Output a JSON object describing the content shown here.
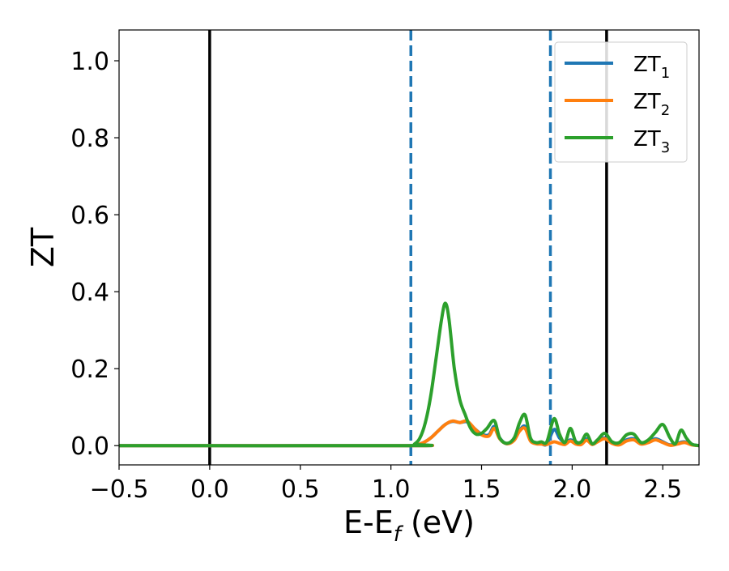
{
  "chart_data": {
    "type": "line",
    "xlabel": "E-E",
    "xlabel_sub": "f",
    "xlabel_unit": " (eV)",
    "ylabel": "ZT",
    "xlim": [
      -0.5,
      2.7
    ],
    "ylim": [
      -0.05,
      1.08
    ],
    "xticks": [
      -0.5,
      0.0,
      0.5,
      1.0,
      1.5,
      2.0,
      2.5
    ],
    "xtick_labels": [
      "−0.5",
      "0.0",
      "0.5",
      "1.0",
      "1.5",
      "2.0",
      "2.5"
    ],
    "yticks": [
      0.0,
      0.2,
      0.4,
      0.6,
      0.8,
      1.0
    ],
    "ytick_labels": [
      "0.0",
      "0.2",
      "0.4",
      "0.6",
      "0.8",
      "1.0"
    ],
    "grid": false,
    "legend_position": "top-right",
    "vlines": [
      {
        "x": 0.0,
        "style": "solid",
        "color": "#000000"
      },
      {
        "x": 2.19,
        "style": "solid",
        "color": "#000000"
      },
      {
        "x": 1.11,
        "style": "dashed",
        "color": "#1f77b4"
      },
      {
        "x": 1.88,
        "style": "dashed",
        "color": "#1f77b4"
      }
    ],
    "series": [
      {
        "name": "ZT",
        "name_sub": "1",
        "color": "#1f77b4",
        "x": [
          -0.5,
          1.1,
          1.14,
          1.18,
          1.22,
          1.26,
          1.3,
          1.34,
          1.38,
          1.42,
          1.46,
          1.5,
          1.54,
          1.57,
          1.6,
          1.64,
          1.68,
          1.71,
          1.74,
          1.77,
          1.8,
          1.83,
          1.86,
          1.9,
          1.93,
          1.96,
          1.99,
          2.02,
          2.05,
          2.08,
          2.11,
          2.14,
          2.18,
          2.22,
          2.26,
          2.3,
          2.34,
          2.38,
          2.42,
          2.46,
          2.5,
          2.54,
          2.58,
          2.62,
          2.66,
          2.7
        ],
        "y": [
          0.0,
          0.0,
          0.002,
          0.008,
          0.02,
          0.038,
          0.055,
          0.063,
          0.06,
          0.062,
          0.045,
          0.03,
          0.028,
          0.05,
          0.02,
          0.005,
          0.018,
          0.04,
          0.05,
          0.015,
          0.006,
          0.005,
          0.004,
          0.042,
          0.02,
          0.008,
          0.015,
          0.01,
          0.006,
          0.018,
          0.005,
          0.012,
          0.02,
          0.008,
          0.003,
          0.015,
          0.018,
          0.005,
          0.01,
          0.018,
          0.01,
          0.002,
          0.006,
          0.01,
          0.003,
          0.0
        ]
      },
      {
        "name": "ZT",
        "name_sub": "2",
        "color": "#ff7f0e",
        "x": [
          -0.5,
          1.1,
          1.14,
          1.18,
          1.22,
          1.26,
          1.3,
          1.34,
          1.38,
          1.42,
          1.46,
          1.5,
          1.54,
          1.57,
          1.6,
          1.64,
          1.68,
          1.71,
          1.74,
          1.77,
          1.8,
          1.83,
          1.86,
          1.9,
          1.93,
          1.96,
          1.99,
          2.02,
          2.05,
          2.08,
          2.11,
          2.14,
          2.18,
          2.22,
          2.26,
          2.3,
          2.34,
          2.38,
          2.42,
          2.46,
          2.5,
          2.54,
          2.58,
          2.62,
          2.66,
          2.7
        ],
        "y": [
          0.0,
          0.0,
          0.002,
          0.008,
          0.02,
          0.038,
          0.055,
          0.064,
          0.06,
          0.064,
          0.045,
          0.028,
          0.025,
          0.045,
          0.018,
          0.005,
          0.014,
          0.038,
          0.045,
          0.012,
          0.005,
          0.004,
          0.003,
          0.01,
          0.006,
          0.003,
          0.012,
          0.004,
          0.003,
          0.014,
          0.003,
          0.01,
          0.018,
          0.006,
          0.002,
          0.012,
          0.015,
          0.004,
          0.008,
          0.015,
          0.008,
          0.001,
          0.004,
          0.008,
          0.002,
          0.0
        ]
      },
      {
        "name": "ZT",
        "name_sub": "3",
        "color": "#2ca02c",
        "x": [
          -0.5,
          1.1,
          1.13,
          1.16,
          1.19,
          1.22,
          1.25,
          1.28,
          1.3,
          1.32,
          1.35,
          1.38,
          1.41,
          1.44,
          1.47,
          1.5,
          1.53,
          1.57,
          1.6,
          1.64,
          1.68,
          1.71,
          1.74,
          1.77,
          1.8,
          1.83,
          1.86,
          1.9,
          1.93,
          1.96,
          1.99,
          2.02,
          2.05,
          2.08,
          2.11,
          2.14,
          2.18,
          2.22,
          2.26,
          2.3,
          2.34,
          2.38,
          2.42,
          2.46,
          2.5,
          2.54,
          2.57,
          2.6,
          2.63,
          2.66,
          2.7
        ],
        "y": [
          0.0,
          0.0,
          0.004,
          0.02,
          0.06,
          0.13,
          0.23,
          0.33,
          0.37,
          0.33,
          0.2,
          0.12,
          0.08,
          0.045,
          0.03,
          0.032,
          0.045,
          0.065,
          0.02,
          0.006,
          0.02,
          0.06,
          0.08,
          0.02,
          0.008,
          0.01,
          0.01,
          0.07,
          0.03,
          0.008,
          0.045,
          0.01,
          0.01,
          0.03,
          0.005,
          0.015,
          0.032,
          0.01,
          0.008,
          0.028,
          0.03,
          0.008,
          0.015,
          0.035,
          0.055,
          0.02,
          0.005,
          0.04,
          0.02,
          0.004,
          0.0
        ]
      }
    ]
  }
}
